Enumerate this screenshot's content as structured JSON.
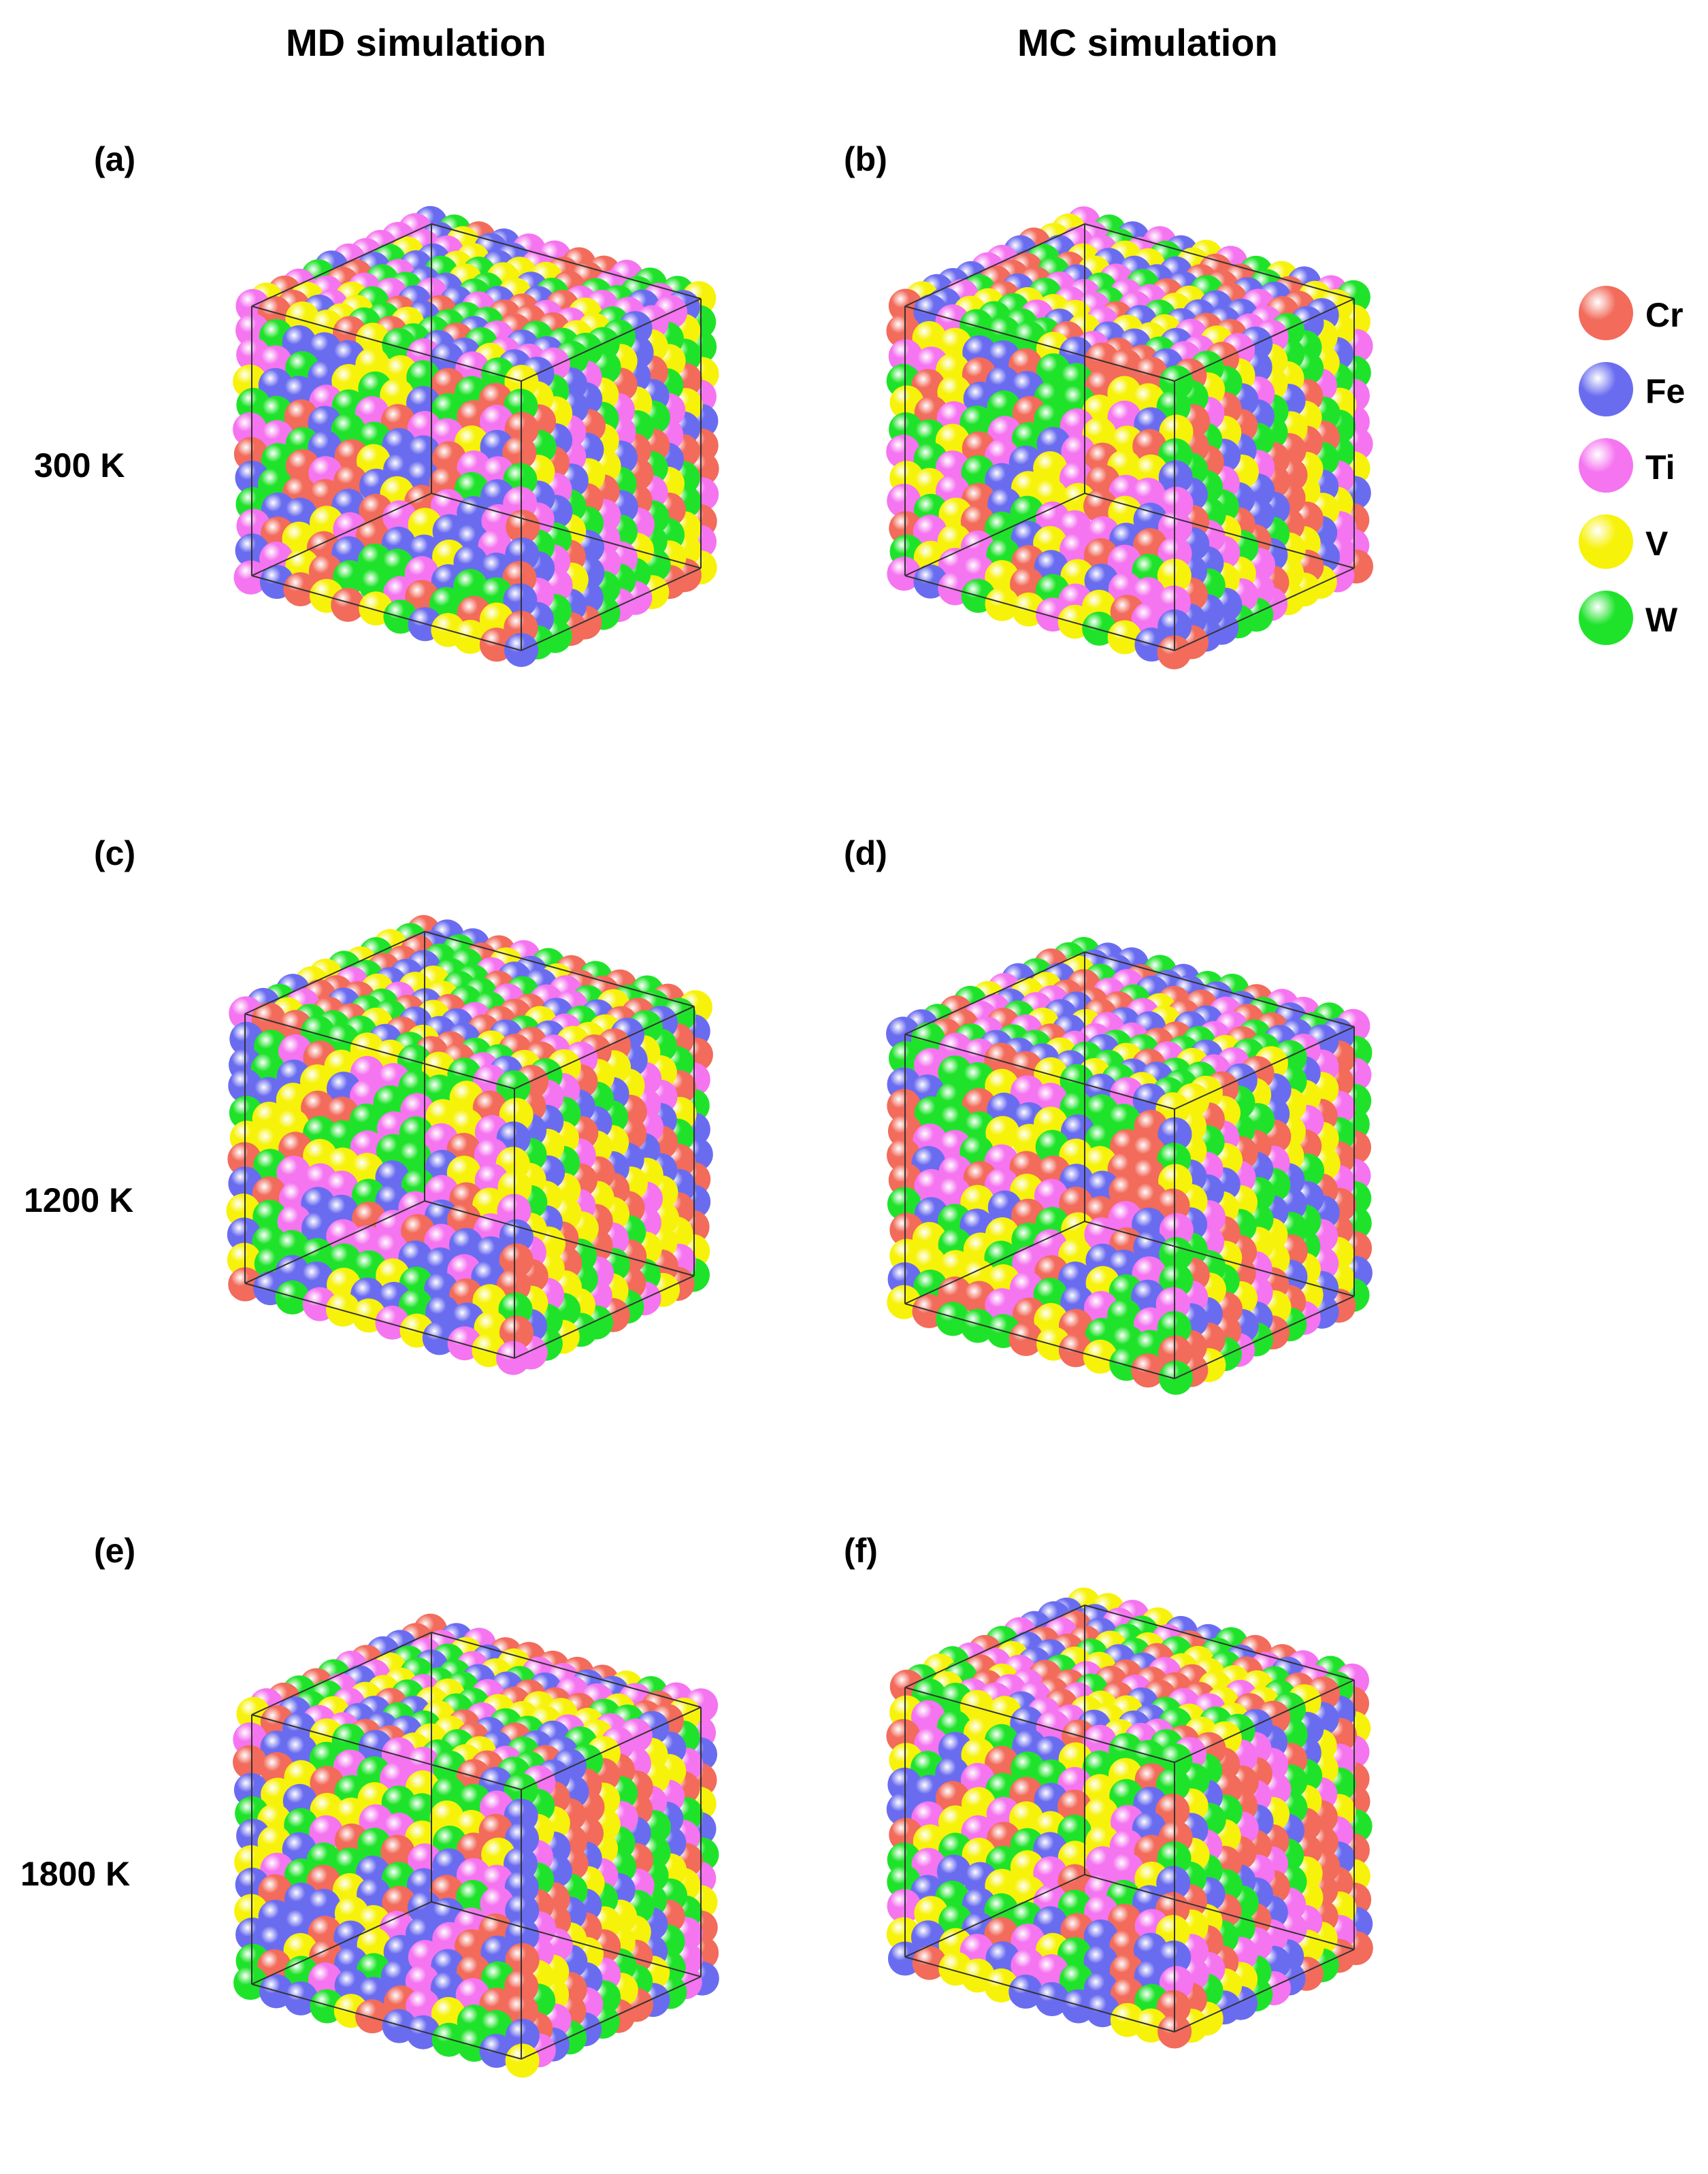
{
  "columns": {
    "md": "MD simulation",
    "mc": "MC simulation"
  },
  "rows": [
    {
      "temperature": "300 K",
      "md_label": "(a)",
      "mc_label": "(b)"
    },
    {
      "temperature": "1200 K",
      "md_label": "(c)",
      "mc_label": "(d)"
    },
    {
      "temperature": "1800 K",
      "md_label": "(e)",
      "mc_label": "(f)"
    }
  ],
  "legend": [
    {
      "element": "Cr",
      "color": "#f26b5b"
    },
    {
      "element": "Fe",
      "color": "#6a6cf0"
    },
    {
      "element": "Ti",
      "color": "#f574f0"
    },
    {
      "element": "V",
      "color": "#f7f20a"
    },
    {
      "element": "W",
      "color": "#1fe32a"
    }
  ]
}
